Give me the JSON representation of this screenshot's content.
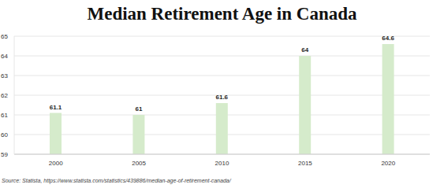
{
  "chart_data": {
    "type": "bar",
    "title": "Median Retirement Age in Canada",
    "categories": [
      "2000",
      "2005",
      "2010",
      "2015",
      "2020"
    ],
    "values": [
      61.1,
      61,
      61.6,
      64,
      64.6
    ],
    "color": "#d5ebcb",
    "ylim": [
      59,
      65
    ],
    "yticks": [
      59,
      60,
      61,
      62,
      63,
      64,
      65
    ],
    "grid": true,
    "data_labels": true,
    "source": "Source: Statista, https://www.statista.com/statistics/439886/median-age-of-retirement-canada/"
  }
}
